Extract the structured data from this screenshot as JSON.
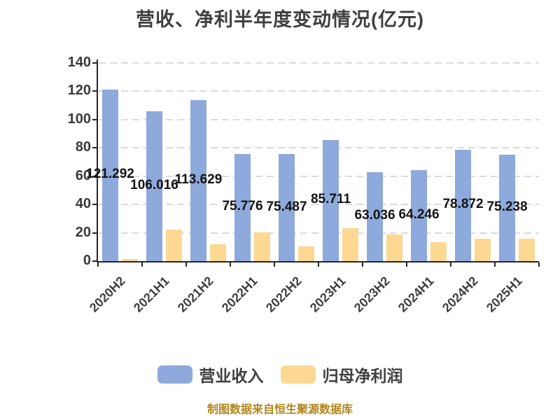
{
  "page": {
    "background": "#FFFFFF"
  },
  "chart_data": {
    "type": "bar",
    "title": "营收、净利半年度变动情况(亿元)",
    "categories": [
      "2020H2",
      "2021H1",
      "2021H2",
      "2022H1",
      "2022H2",
      "2023H1",
      "2023H2",
      "2024H1",
      "2024H2",
      "2025H1"
    ],
    "series": [
      {
        "name": "营业收入",
        "color": "#8EA9DB",
        "values": [
          121.292,
          106.016,
          113.629,
          75.776,
          75.487,
          85.711,
          63.036,
          64.246,
          78.872,
          75.238
        ],
        "labels": [
          "121.292",
          "106.016",
          "113.629",
          "75.776",
          "75.487",
          "85.711",
          "63.036",
          "64.246",
          "78.872",
          "75.238"
        ],
        "labels_shown": true
      },
      {
        "name": "归母净利润",
        "color": "#FCD893",
        "values": [
          1.5,
          22.3,
          11.9,
          20.4,
          10.5,
          23.3,
          18.8,
          13.4,
          16.0,
          15.8
        ],
        "labels_shown": false
      }
    ],
    "ylim": [
      0,
      140
    ],
    "ytick_step": 20,
    "yticks": [
      "0",
      "20",
      "40",
      "60",
      "80",
      "100",
      "120",
      "140"
    ],
    "xlabel": "",
    "ylabel": "",
    "grid": "horizontal-dashed",
    "legend_position": "bottom"
  },
  "legend": {
    "items": [
      {
        "label": "营业收入",
        "color": "#8EA9DB"
      },
      {
        "label": "归母净利润",
        "color": "#FCD893"
      }
    ]
  },
  "footer": {
    "text": "制图数据来自恒生聚源数据库",
    "color": "#B0861A"
  },
  "styles": {
    "axis_color": "#262626",
    "grid_color": "#DBDBDB",
    "title_color": "#3F3F3F",
    "tick_label_color": "#3A3A3A",
    "value_label_color": "#121212"
  }
}
